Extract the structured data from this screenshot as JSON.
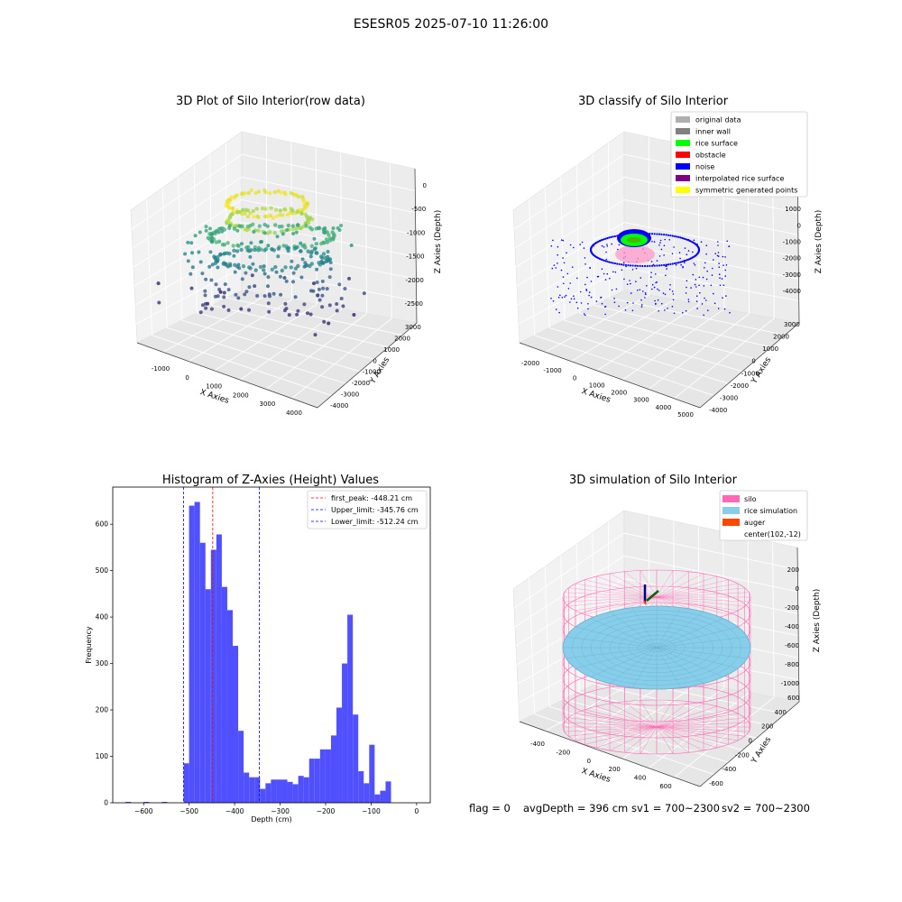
{
  "figure": {
    "suptitle": "ESESR05 2025-07-10 11:26:00",
    "footer": {
      "flag": "flag = 0",
      "avg_depth": "avgDepth = 396 cm",
      "sv1": "sv1 = 700~2300",
      "sv2": "sv2 = 700~2300"
    }
  },
  "chart_data": [
    {
      "type": "scatter",
      "title": "3D Plot of Silo Interior(row data)",
      "xlabel": "X Axies",
      "ylabel": "Y Axies",
      "zlabel": "Z Axies (Depth)",
      "x_ticks": [
        "-1000",
        "0",
        "1000",
        "2000",
        "3000",
        "4000"
      ],
      "y_ticks": [
        "-4000",
        "-3000",
        "-2000",
        "-1000",
        "0",
        "1000",
        "2000",
        "3000"
      ],
      "z_ticks": [
        "0",
        "-500",
        "-1000",
        "-1500",
        "-2000",
        "-2500"
      ],
      "colormap": "viridis (by depth)",
      "grid": true
    },
    {
      "type": "scatter",
      "title": "3D classify of Silo Interior",
      "xlabel": "X Axies",
      "ylabel": "Y Axies",
      "zlabel": "Z Axies (Depth)",
      "x_ticks": [
        "-2000",
        "-1000",
        "0",
        "1000",
        "2000",
        "3000",
        "4000",
        "5000"
      ],
      "y_ticks": [
        "-4000",
        "-3000",
        "-2000",
        "-1000",
        "0",
        "1000",
        "2000",
        "3000"
      ],
      "z_ticks": [
        "2000",
        "1000",
        "0",
        "-1000",
        "-2000",
        "-3000",
        "-4000"
      ],
      "legend": [
        {
          "label": "original data",
          "color": "#b0b0b0"
        },
        {
          "label": "inner wall",
          "color": "#808080"
        },
        {
          "label": "rice surface",
          "color": "#00ff00"
        },
        {
          "label": "obstacle",
          "color": "#ff0000"
        },
        {
          "label": "noise",
          "color": "#0000ff"
        },
        {
          "label": "interpolated rice surface",
          "color": "#800080"
        },
        {
          "label": "symmetric generated points",
          "color": "#ffff00"
        }
      ],
      "legend_position": "upper-right",
      "grid": true
    },
    {
      "type": "bar",
      "title": "Histogram of Z-Axies (Height) Values",
      "xlabel": "Depth (cm)",
      "ylabel": "Frequency",
      "xlim": [
        -668,
        30
      ],
      "ylim": [
        0,
        680
      ],
      "x_ticks": [
        -600,
        -500,
        -400,
        -300,
        -200,
        -100,
        0
      ],
      "y_ticks": [
        0,
        100,
        200,
        300,
        400,
        500,
        600
      ],
      "bar_color": "#5050ff",
      "bin_start": -512.24,
      "bin_width": 12.0,
      "values": [
        85,
        640,
        648,
        560,
        460,
        545,
        578,
        465,
        415,
        338,
        155,
        65,
        55,
        55,
        30,
        42,
        50,
        50,
        50,
        45,
        40,
        58,
        55,
        95,
        95,
        115,
        115,
        145,
        205,
        300,
        405,
        190,
        68,
        42,
        125,
        18,
        26,
        46
      ],
      "extra_bins": [
        {
          "x": -640,
          "value": 2
        },
        {
          "x": -600,
          "value": 2
        },
        {
          "x": -560,
          "value": 2
        }
      ],
      "vlines": [
        {
          "label": "first_peak: -448.21 cm",
          "x": -448.21,
          "color": "#ff0000"
        },
        {
          "label": "Upper_limit: -345.76 cm",
          "x": -345.76,
          "color": "#0000ff"
        },
        {
          "label": "Lower_limit: -512.24 cm",
          "x": -512.24,
          "color": "#0000ff"
        }
      ],
      "legend_position": "upper-right"
    },
    {
      "type": "scatter",
      "title": "3D simulation of Silo Interior",
      "xlabel": "X Axies",
      "ylabel": "Y Axies",
      "zlabel": "Z Axies (Depth)",
      "x_ticks": [
        "-400",
        "-200",
        "0",
        "200",
        "400",
        "600"
      ],
      "y_ticks": [
        "-600",
        "-400",
        "-200",
        "0",
        "200",
        "400",
        "600"
      ],
      "z_ticks": [
        "200",
        "0",
        "-200",
        "-400",
        "-600",
        "-800",
        "-1000"
      ],
      "legend": [
        {
          "label": "silo",
          "color": "#ff69b4"
        },
        {
          "label": "rice simulation",
          "color": "#87ceeb"
        },
        {
          "label": "auger",
          "color": "#ff4500"
        },
        {
          "label": "center(102,-12)",
          "color": ""
        }
      ],
      "legend_position": "upper-right",
      "grid": true
    }
  ]
}
